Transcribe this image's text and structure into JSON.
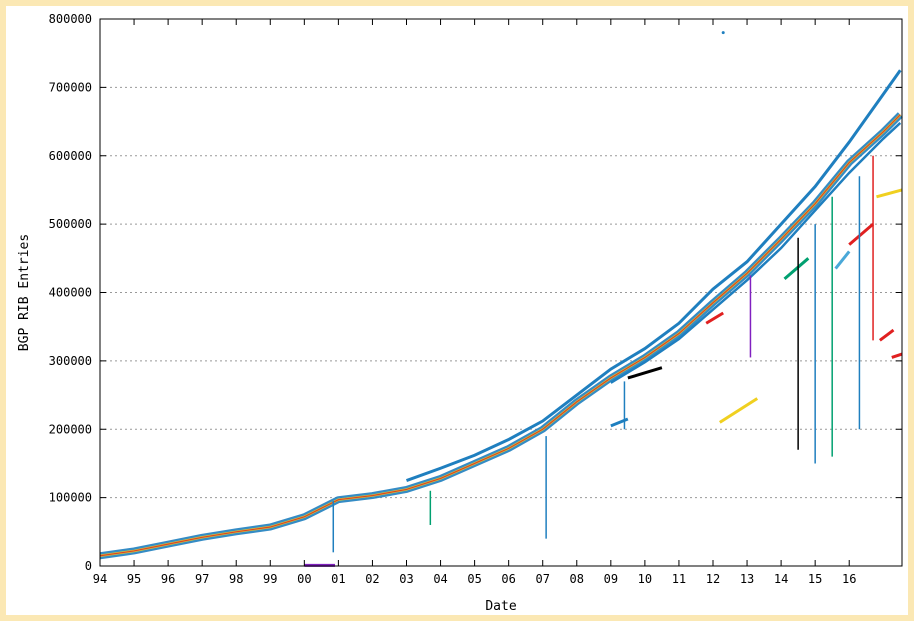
{
  "chart_data": {
    "type": "scatter",
    "title": "",
    "xlabel": "Date",
    "ylabel": "BGP RIB Entries",
    "x_ticks": [
      "94",
      "95",
      "96",
      "97",
      "98",
      "99",
      "00",
      "01",
      "02",
      "03",
      "04",
      "05",
      "06",
      "07",
      "08",
      "09",
      "10",
      "11",
      "12",
      "13",
      "14",
      "15",
      "16"
    ],
    "xlim": [
      1994.0,
      2017.55
    ],
    "ylim": [
      0,
      800000
    ],
    "y_ticks": [
      0,
      100000,
      200000,
      300000,
      400000,
      500000,
      600000,
      700000,
      800000
    ],
    "y_tick_labels": [
      "0",
      "100000",
      "200000",
      "300000",
      "400000",
      "500000",
      "600000",
      "700000",
      "800000"
    ],
    "grid": "horizontal dotted",
    "legend": "none",
    "series_colors": [
      "#1f7fbf",
      "#f0d020",
      "#e02020",
      "#8020c0",
      "#00a070",
      "#000000",
      "#2080ff",
      "#ff8000"
    ],
    "main_trend": {
      "x": [
        1994.0,
        1995.0,
        1996.0,
        1997.0,
        1998.0,
        1999.0,
        2000.0,
        2001.0,
        2002.0,
        2003.0,
        2004.0,
        2005.0,
        2006.0,
        2007.0,
        2008.0,
        2009.0,
        2010.0,
        2011.0,
        2012.0,
        2013.0,
        2014.0,
        2015.0,
        2016.0,
        2017.0,
        2017.5
      ],
      "y": [
        15000,
        22000,
        32000,
        42000,
        50000,
        57000,
        72000,
        97000,
        103000,
        112000,
        128000,
        150000,
        172000,
        200000,
        240000,
        275000,
        305000,
        340000,
        385000,
        428000,
        478000,
        530000,
        590000,
        635000,
        660000
      ]
    },
    "upper_envelope": {
      "x": [
        2003.0,
        2004.0,
        2005.0,
        2006.0,
        2007.0,
        2008.0,
        2009.0,
        2010.0,
        2011.0,
        2012.0,
        2013.0,
        2014.0,
        2015.0,
        2016.0,
        2017.0,
        2017.5
      ],
      "y": [
        125000,
        143000,
        162000,
        185000,
        212000,
        250000,
        288000,
        318000,
        355000,
        405000,
        445000,
        500000,
        555000,
        620000,
        690000,
        725000
      ]
    },
    "lower_envelope": {
      "x": [
        2009.0,
        2010.0,
        2011.0,
        2012.0,
        2013.0,
        2014.0,
        2015.0,
        2016.0,
        2017.0,
        2017.5
      ],
      "y": [
        268000,
        298000,
        332000,
        375000,
        418000,
        465000,
        520000,
        575000,
        625000,
        648000
      ]
    },
    "segments": [
      {
        "color": "#e02020",
        "x": [
          2011.8,
          2012.3
        ],
        "y": [
          355000,
          370000
        ]
      },
      {
        "color": "#f0d020",
        "x": [
          2012.2,
          2013.3
        ],
        "y": [
          210000,
          245000
        ]
      },
      {
        "color": "#00a070",
        "x": [
          2014.1,
          2014.8
        ],
        "y": [
          420000,
          450000
        ]
      },
      {
        "color": "#e02020",
        "x": [
          2016.0,
          2016.7
        ],
        "y": [
          470000,
          500000
        ]
      },
      {
        "color": "#f0d020",
        "x": [
          2016.8,
          2017.55
        ],
        "y": [
          540000,
          550000
        ]
      },
      {
        "color": "#e02020",
        "x": [
          2016.9,
          2017.3
        ],
        "y": [
          330000,
          345000
        ]
      },
      {
        "color": "#e02020",
        "x": [
          2017.25,
          2017.55
        ],
        "y": [
          305000,
          310000
        ]
      },
      {
        "color": "#4aa8d8",
        "x": [
          2015.6,
          2016.0
        ],
        "y": [
          435000,
          460000
        ]
      },
      {
        "color": "#8020c0",
        "x": [
          2000.0,
          2000.9
        ],
        "y": [
          1000,
          1000
        ]
      },
      {
        "color": "#1f7fbf",
        "x": [
          2009.0,
          2009.5
        ],
        "y": [
          205000,
          215000
        ]
      },
      {
        "color": "#000000",
        "x": [
          2009.5,
          2010.5
        ],
        "y": [
          275000,
          290000
        ]
      }
    ],
    "drops": [
      {
        "color": "#8020c0",
        "x": 2013.1,
        "y1": 425000,
        "y2": 305000
      },
      {
        "color": "#1f7fbf",
        "x": 2015.0,
        "y1": 500000,
        "y2": 150000
      },
      {
        "color": "#00a070",
        "x": 2015.5,
        "y1": 540000,
        "y2": 160000
      },
      {
        "color": "#1f7fbf",
        "x": 2016.3,
        "y1": 570000,
        "y2": 200000
      },
      {
        "color": "#e02020",
        "x": 2016.7,
        "y1": 600000,
        "y2": 330000
      },
      {
        "color": "#1f7fbf",
        "x": 2009.4,
        "y1": 270000,
        "y2": 200000
      },
      {
        "color": "#1f7fbf",
        "x": 2000.85,
        "y1": 95000,
        "y2": 20000
      },
      {
        "color": "#00a070",
        "x": 2003.7,
        "y1": 110000,
        "y2": 60000
      },
      {
        "color": "#1f7fbf",
        "x": 2007.1,
        "y1": 190000,
        "y2": 40000
      },
      {
        "color": "#000000",
        "x": 2014.5,
        "y1": 480000,
        "y2": 170000
      }
    ],
    "outliers": [
      {
        "color": "#1f7fbf",
        "x": 2012.3,
        "y": 780000
      }
    ]
  }
}
